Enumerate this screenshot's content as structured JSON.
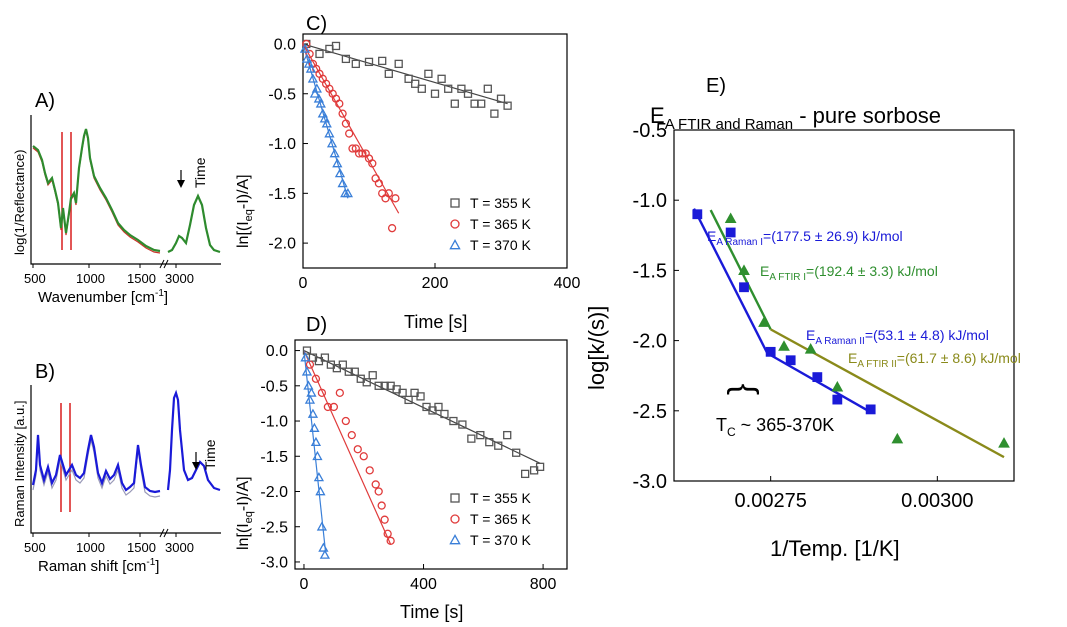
{
  "chart_data": [
    {
      "panel": "A)",
      "type": "line",
      "xlabel": "Wavenumber [cm⁻¹]",
      "ylabel": "log(1/Reflectance)",
      "x_ticks": [
        "500",
        "1000",
        "1500",
        "3000"
      ],
      "annotation": "Time",
      "series_colors": [
        "#2e8b2e",
        "#c8342a"
      ],
      "marker_lines_color": "#d81e1e"
    },
    {
      "panel": "B)",
      "type": "line",
      "xlabel": "Raman shift [cm⁻¹]",
      "ylabel": "Raman Intensity [a.u.]",
      "x_ticks": [
        "500",
        "1000",
        "1500",
        "3000"
      ],
      "annotation": "Time",
      "series_colors": [
        "#1a1ad8",
        "#9a9ab8"
      ],
      "marker_lines_color": "#d81e1e"
    },
    {
      "panel": "C)",
      "type": "scatter",
      "xlabel": "Time [s]",
      "ylabel": "ln[(I_eq-I)/A]",
      "xlim": [
        0,
        400
      ],
      "ylim": [
        -2.25,
        0.1
      ],
      "x_ticks": [
        0,
        200,
        400
      ],
      "y_ticks": [
        0.0,
        -0.5,
        -1.0,
        -1.5,
        -2.0
      ],
      "legend_position": "bottom-right",
      "series": [
        {
          "name": "T = 355 K",
          "marker": "square",
          "color": "#555555",
          "x": [
            5,
            25,
            40,
            50,
            65,
            80,
            100,
            120,
            130,
            145,
            160,
            170,
            180,
            190,
            200,
            210,
            220,
            230,
            240,
            250,
            260,
            270,
            280,
            290,
            300,
            310
          ],
          "y": [
            0.0,
            -0.1,
            -0.05,
            -0.02,
            -0.15,
            -0.2,
            -0.18,
            -0.17,
            -0.3,
            -0.2,
            -0.35,
            -0.4,
            -0.45,
            -0.3,
            -0.5,
            -0.35,
            -0.45,
            -0.6,
            -0.45,
            -0.5,
            -0.6,
            -0.6,
            -0.45,
            -0.7,
            -0.55,
            -0.62
          ],
          "fit": {
            "x": [
              0,
              310
            ],
            "y": [
              0.0,
              -0.6
            ]
          }
        },
        {
          "name": "T = 365 K",
          "marker": "circle",
          "color": "#e03b3b",
          "x": [
            5,
            10,
            15,
            20,
            25,
            30,
            35,
            40,
            45,
            50,
            55,
            60,
            65,
            70,
            75,
            80,
            85,
            90,
            95,
            100,
            105,
            110,
            115,
            120,
            125,
            130,
            135,
            140
          ],
          "y": [
            0.0,
            -0.1,
            -0.2,
            -0.25,
            -0.3,
            -0.35,
            -0.4,
            -0.45,
            -0.5,
            -0.55,
            -0.6,
            -0.7,
            -0.8,
            -0.9,
            -1.05,
            -1.05,
            -1.1,
            -1.1,
            -1.1,
            -1.15,
            -1.2,
            -1.35,
            -1.4,
            -1.5,
            -1.55,
            -1.5,
            -1.85,
            -1.55
          ],
          "fit": {
            "x": [
              0,
              145
            ],
            "y": [
              0.0,
              -1.7
            ]
          }
        },
        {
          "name": "T = 370 K",
          "marker": "triangle",
          "color": "#3a7fd8",
          "x": [
            3,
            6,
            9,
            12,
            15,
            18,
            21,
            24,
            27,
            30,
            33,
            36,
            40,
            44,
            48,
            52,
            56,
            60,
            64,
            68
          ],
          "y": [
            -0.05,
            -0.15,
            -0.2,
            -0.25,
            -0.35,
            -0.5,
            -0.45,
            -0.55,
            -0.6,
            -0.7,
            -0.75,
            -0.8,
            -0.9,
            -1.0,
            -1.1,
            -1.2,
            -1.3,
            -1.4,
            -1.5,
            -1.5
          ],
          "fit": {
            "x": [
              0,
              68
            ],
            "y": [
              0.0,
              -1.55
            ]
          }
        }
      ]
    },
    {
      "panel": "D)",
      "type": "scatter",
      "xlabel": "Time [s]",
      "ylabel": "ln[(I_eq-I)/A]",
      "xlim": [
        -30,
        880
      ],
      "ylim": [
        -3.1,
        0.15
      ],
      "x_ticks": [
        0,
        400,
        800
      ],
      "y_ticks": [
        0.0,
        -0.5,
        -1.0,
        -1.5,
        -2.0,
        -2.5,
        -3.0
      ],
      "legend_position": "bottom-right",
      "series": [
        {
          "name": "T = 355 K",
          "marker": "square",
          "color": "#555555",
          "x": [
            10,
            30,
            50,
            70,
            90,
            110,
            130,
            150,
            170,
            190,
            210,
            230,
            250,
            270,
            290,
            310,
            330,
            350,
            370,
            390,
            410,
            430,
            450,
            470,
            500,
            530,
            560,
            590,
            620,
            650,
            680,
            710,
            740,
            770,
            790
          ],
          "y": [
            0.0,
            -0.1,
            -0.15,
            -0.1,
            -0.2,
            -0.25,
            -0.2,
            -0.3,
            -0.3,
            -0.4,
            -0.45,
            -0.35,
            -0.5,
            -0.5,
            -0.5,
            -0.55,
            -0.6,
            -0.7,
            -0.6,
            -0.65,
            -0.8,
            -0.85,
            -0.8,
            -0.9,
            -1.0,
            -1.05,
            -1.25,
            -1.2,
            -1.3,
            -1.35,
            -1.2,
            -1.45,
            -1.75,
            -1.7,
            -1.65
          ],
          "fit": {
            "x": [
              0,
              790
            ],
            "y": [
              0.0,
              -1.6
            ]
          }
        },
        {
          "name": "T = 365 K",
          "marker": "circle",
          "color": "#e03b3b",
          "x": [
            20,
            40,
            60,
            80,
            100,
            120,
            140,
            160,
            180,
            200,
            220,
            240,
            250,
            260,
            270,
            280,
            290
          ],
          "y": [
            -0.2,
            -0.4,
            -0.6,
            -0.8,
            -0.8,
            -0.6,
            -1.0,
            -1.2,
            -1.4,
            -1.5,
            -1.7,
            -1.9,
            -2.0,
            -2.2,
            -2.4,
            -2.6,
            -2.7
          ],
          "fit": {
            "x": [
              0,
              290
            ],
            "y": [
              0.0,
              -2.75
            ]
          }
        },
        {
          "name": "T = 370 K",
          "marker": "triangle",
          "color": "#3a7fd8",
          "x": [
            5,
            10,
            15,
            20,
            25,
            30,
            35,
            40,
            45,
            50,
            55,
            60,
            65,
            70
          ],
          "y": [
            -0.1,
            -0.3,
            -0.5,
            -0.7,
            -0.6,
            -0.9,
            -1.1,
            -1.3,
            -1.5,
            -1.8,
            -2.0,
            -2.5,
            -2.8,
            -2.9
          ],
          "fit": {
            "x": [
              0,
              72
            ],
            "y": [
              0.0,
              -2.85
            ]
          }
        }
      ]
    },
    {
      "panel": "E)",
      "type": "scatter",
      "title": "E_A FTIR and Raman - pure sorbose",
      "xlabel": "1/Temp. [1/K]",
      "ylabel": "log[k/(s)]",
      "xlim": [
        0.002605,
        0.003115
      ],
      "ylim": [
        -3.0,
        -0.5
      ],
      "x_ticks": [
        0.00275,
        0.003
      ],
      "x_tick_labels": [
        "0.00275",
        "0.00300"
      ],
      "y_ticks": [
        -0.5,
        -1.0,
        -1.5,
        -2.0,
        -2.5,
        -3.0
      ],
      "series": [
        {
          "name": "Raman",
          "marker": "square",
          "color": "#1a1ad8",
          "x": [
            0.00264,
            0.00269,
            0.00271,
            0.00275,
            0.00278,
            0.00282,
            0.00285,
            0.0029
          ],
          "y": [
            -1.1,
            -1.23,
            -1.62,
            -2.08,
            -2.14,
            -2.26,
            -2.42,
            -2.49
          ]
        },
        {
          "name": "FTIR",
          "marker": "triangle",
          "color": "#2f8f2f",
          "x": [
            0.00269,
            0.00271,
            0.00274,
            0.00277,
            0.00281,
            0.00285,
            0.00294,
            0.0031
          ],
          "y": [
            -1.13,
            -1.5,
            -1.87,
            -2.04,
            -2.06,
            -2.33,
            -2.7,
            -2.73
          ]
        }
      ],
      "fits": [
        {
          "label": "E_A Raman I=(177.5 ± 26.9) kJ/mol",
          "color": "#1a1ad8",
          "x": [
            0.002635,
            0.002745
          ],
          "y": [
            -1.06,
            -2.09
          ]
        },
        {
          "label": "E_A FTIR I=(192.4 ± 3.3) kJ/mol",
          "color": "#2f8f2f",
          "x": [
            0.00266,
            0.00275
          ],
          "y": [
            -1.07,
            -1.92
          ]
        },
        {
          "label": "E_A Raman II=(53.1 ± 4.8) kJ/mol",
          "color": "#1a1ad8",
          "x": [
            0.002745,
            0.0029
          ],
          "y": [
            -2.09,
            -2.51
          ]
        },
        {
          "label": "E_A FTIR II=(61.7 ± 8.6) kJ/mol",
          "color": "#8a8a1a",
          "x": [
            0.00275,
            0.0031
          ],
          "y": [
            -1.92,
            -2.83
          ]
        }
      ],
      "annotation": "T_C ~ 365-370K"
    }
  ],
  "labels": {
    "panel_a": "A)",
    "panel_b": "B)",
    "panel_c": "C)",
    "panel_d": "D)",
    "panel_e": "E)",
    "time": "Time",
    "ylabel_a": "log(1/Reflectance)",
    "xlabel_a_main": "Wavenumber [cm",
    "xlabel_a_sup": "-1",
    "xlabel_a_end": "]",
    "ylabel_b": "Raman Intensity [a.u.]",
    "xlabel_b_main": "Raman shift [cm",
    "xlabel_b_sup": "-1",
    "xlabel_b_end": "]",
    "ylabel_cd_pre": "ln[(I",
    "ylabel_cd_sub": "eq",
    "ylabel_cd_post": "-I)/A]",
    "time_s": "Time [s]",
    "e_title_e": "E",
    "e_title_sub": "A FTIR and Raman",
    "e_title_rest": " - pure sorbose",
    "e_ylabel": "log[k/(s)]",
    "e_xlabel": "1/Temp. [1/K]",
    "ea_e": "E",
    "raman1_sub": "A Raman I",
    "raman1_val": "=(177.5 ± 26.9) kJ/mol",
    "ftir1_sub": "A FTIR I",
    "ftir1_val": "=(192.4 ± 3.3) kJ/mol",
    "raman2_sub": "A Raman II",
    "raman2_val": "=(53.1 ± 4.8) kJ/mol",
    "ftir2_sub": "A FTIR II",
    "ftir2_val": "=(61.7 ± 8.6) kJ/mol",
    "tc_t": "T",
    "tc_sub": "C",
    "tc_rest": " ~ 365-370K",
    "brace": "}"
  }
}
